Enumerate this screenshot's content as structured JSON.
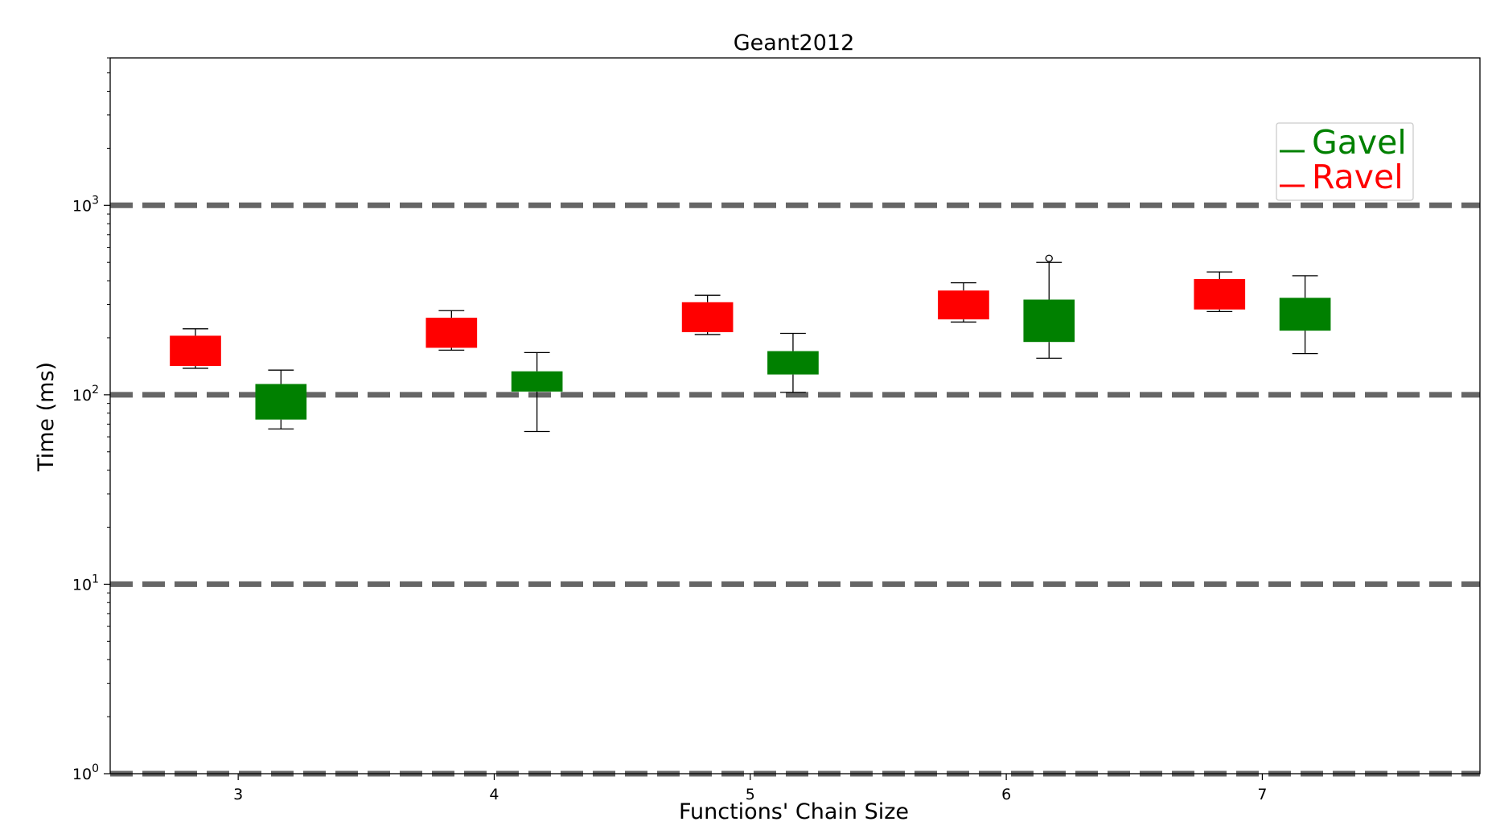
{
  "chart_data": {
    "type": "boxplot",
    "title": "Geant2012",
    "xlabel": "Functions' Chain Size",
    "ylabel": "Time (ms)",
    "yscale": "log",
    "ylim": [
      1,
      6000
    ],
    "xlim": [
      2.5,
      7.85
    ],
    "categories": [
      3,
      4,
      5,
      6,
      7
    ],
    "x_ticks": [
      "3",
      "4",
      "5",
      "6",
      "7"
    ],
    "y_ticks": [
      {
        "base": "10",
        "exp": "0",
        "value": 1
      },
      {
        "base": "10",
        "exp": "1",
        "value": 10
      },
      {
        "base": "10",
        "exp": "2",
        "value": 100
      },
      {
        "base": "10",
        "exp": "3",
        "value": 1000
      }
    ],
    "reference_lines": [
      1,
      10,
      100,
      1000
    ],
    "legend": {
      "placement": "top-right",
      "entries": [
        "Gavel",
        "Ravel"
      ]
    },
    "series": [
      {
        "name": "Ravel",
        "color": "#ff0000",
        "offset": -0.167,
        "boxes": [
          {
            "x": 3,
            "whislo": 138,
            "q1": 142,
            "q3": 205,
            "whishi": 223,
            "fliers": []
          },
          {
            "x": 4,
            "whislo": 172,
            "q1": 177,
            "q3": 255,
            "whishi": 278,
            "fliers": []
          },
          {
            "x": 5,
            "whislo": 208,
            "q1": 214,
            "q3": 308,
            "whishi": 335,
            "fliers": []
          },
          {
            "x": 6,
            "whislo": 242,
            "q1": 250,
            "q3": 355,
            "whishi": 390,
            "fliers": []
          },
          {
            "x": 7,
            "whislo": 275,
            "q1": 282,
            "q3": 408,
            "whishi": 445,
            "fliers": []
          }
        ]
      },
      {
        "name": "Gavel",
        "color": "#008000",
        "offset": 0.167,
        "boxes": [
          {
            "x": 3,
            "whislo": 66,
            "q1": 74,
            "q3": 114,
            "whishi": 135,
            "fliers": []
          },
          {
            "x": 4,
            "whislo": 64,
            "q1": 104,
            "q3": 133,
            "whishi": 167,
            "fliers": []
          },
          {
            "x": 5,
            "whislo": 103,
            "q1": 128,
            "q3": 170,
            "whishi": 211,
            "fliers": []
          },
          {
            "x": 6,
            "whislo": 156,
            "q1": 190,
            "q3": 318,
            "whishi": 500,
            "fliers": [
              525
            ]
          },
          {
            "x": 7,
            "whislo": 165,
            "q1": 218,
            "q3": 325,
            "whishi": 425,
            "fliers": []
          }
        ]
      }
    ]
  }
}
